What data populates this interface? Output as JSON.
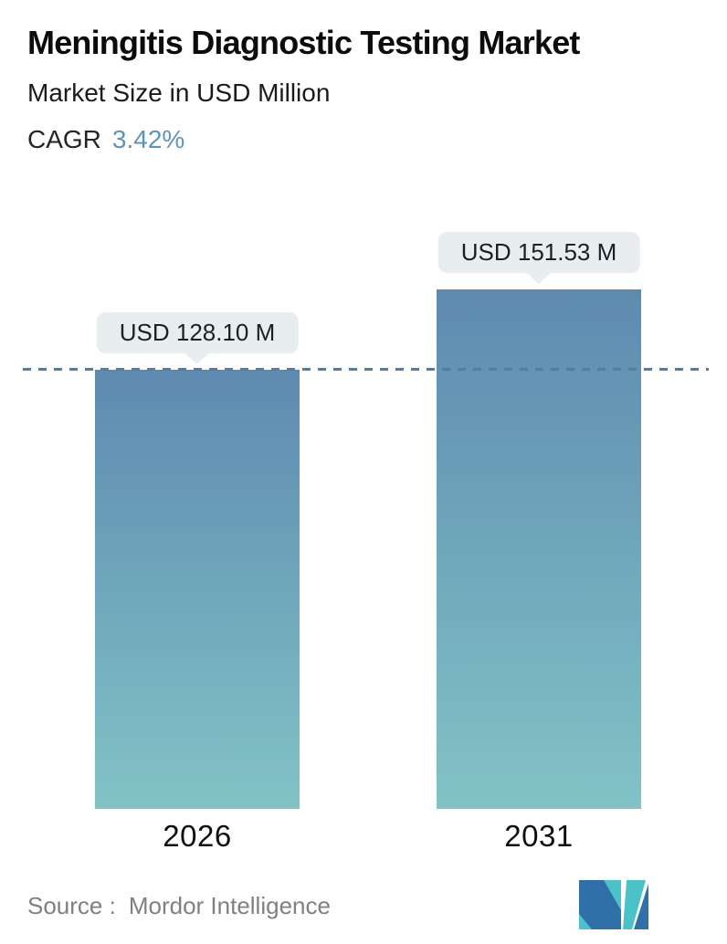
{
  "header": {
    "title": "Meningitis Diagnostic Testing Market",
    "subtitle": "Market Size in USD Million",
    "cagr_label": "CAGR",
    "cagr_value": "3.42%"
  },
  "chart_data": {
    "type": "bar",
    "title": "Meningitis Diagnostic Testing Market",
    "ylabel": "Market Size in USD Million",
    "categories": [
      "2026",
      "2031"
    ],
    "values": [
      128.1,
      151.53
    ],
    "value_labels": [
      "USD 128.10 M",
      "USD 151.53 M"
    ],
    "cagr_percent": 3.42,
    "ylim": [
      0,
      170
    ],
    "grid": "off",
    "legend": "none",
    "reference_line": {
      "style": "dashed",
      "value": 128.1,
      "color": "#4c7fae"
    },
    "bar_colors": {
      "gradient_top": "#5e8ab0",
      "gradient_bottom": "#81c3c6"
    }
  },
  "footer": {
    "source_label": "Source :",
    "source_name": "Mordor Intelligence",
    "logo": "mordor-intelligence-logo",
    "logo_colors": {
      "teal": "#4bc1c8",
      "blue": "#2f70a8"
    }
  },
  "colors": {
    "accent_blue": "#5e93be",
    "tooltip_bg": "#e8eef0",
    "title_text": "#0b0c0d",
    "source_gray": "#7e8183"
  }
}
